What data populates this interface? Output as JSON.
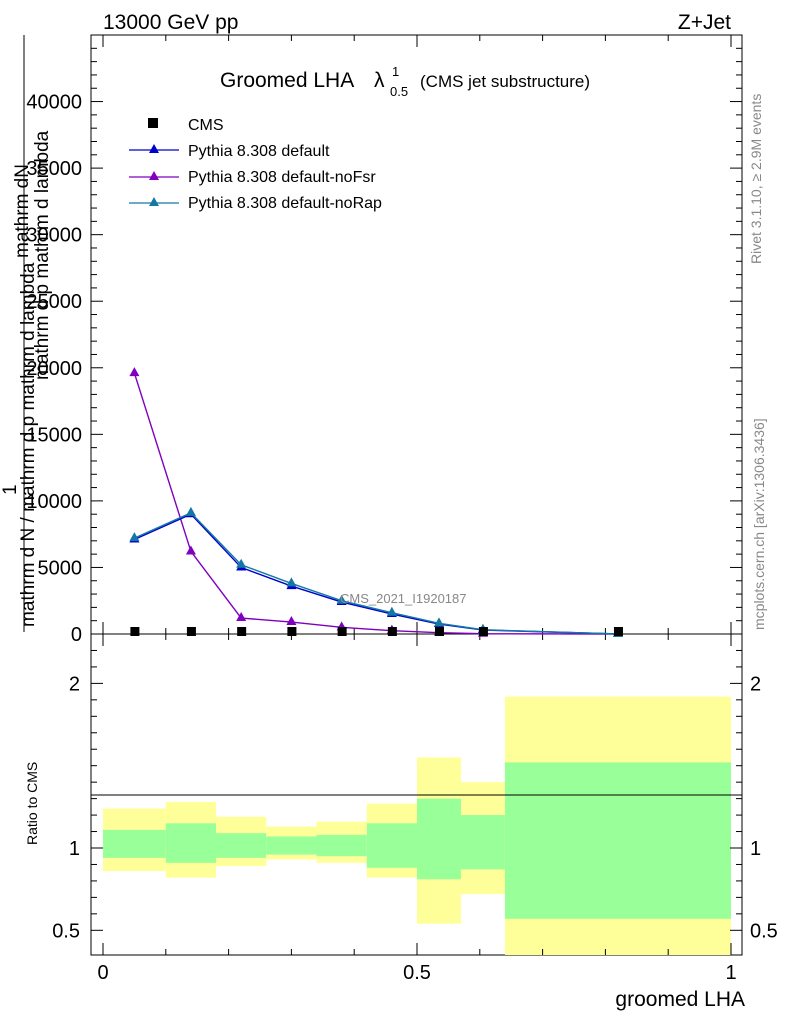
{
  "header": {
    "left": "13000 GeV pp",
    "right": "Z+Jet"
  },
  "title": {
    "prefix": "Groomed LHA",
    "lambda": "λ",
    "superscript": "1",
    "subscript": "0.5",
    "suffix": "(CMS jet substructure)"
  },
  "side_text": {
    "rivet": "Rivet 3.1.10, ≥ 2.9M events",
    "mcplots": "mcplots.cern.ch [arXiv:1306.3436]"
  },
  "watermark": "CMS_2021_I1920187",
  "y_label_lines": [
    "1",
    "mathrm d N",
    "mathrm d N / mathrm d p",
    "mathrm d lambda",
    "mathrm d p",
    "mathrm d mathrm d lambda"
  ],
  "y_label": {
    "numerator": "1",
    "denominator": "mathrm d N",
    "main": "mathrm dN",
    "line2": "mathrm d p mathrm d lambda",
    "line3": "mathrm d N / mathrm d p mathrm d lambda"
  },
  "ratio_ylabel": "Ratio to CMS",
  "xlabel": "groomed LHA",
  "legend": {
    "cms": "CMS",
    "default": "Pythia 8.308 default",
    "nofsr": "Pythia 8.308 default-noFsr",
    "norap": "Pythia 8.308 default-noRap"
  },
  "colors": {
    "cms": "#000000",
    "default": "#0000cc",
    "nofsr": "#7f00bf",
    "norap": "#1478a6",
    "band_outer": "#ffff99",
    "band_inner": "#99ff99"
  },
  "chart_data": {
    "type": "line",
    "x": [
      0.05,
      0.14,
      0.22,
      0.3,
      0.38,
      0.46,
      0.535,
      0.605,
      0.82
    ],
    "xlim": [
      0,
      1
    ],
    "ylim": [
      0,
      45000
    ],
    "yticks": [
      0,
      5000,
      10000,
      15000,
      20000,
      25000,
      30000,
      35000,
      40000
    ],
    "xticks": [
      0,
      0.5,
      1
    ],
    "series": [
      {
        "name": "CMS",
        "values": [
          0,
          0,
          0,
          0,
          0,
          0,
          0,
          0,
          0
        ]
      },
      {
        "name": "Pythia 8.308 default",
        "values": [
          7100,
          9000,
          5000,
          3600,
          2400,
          1500,
          750,
          300,
          0
        ]
      },
      {
        "name": "Pythia 8.308 default-noFsr",
        "values": [
          19600,
          6200,
          1200,
          900,
          500,
          250,
          100,
          20,
          0
        ]
      },
      {
        "name": "Pythia 8.308 default-noRap",
        "values": [
          7200,
          9100,
          5200,
          3800,
          2500,
          1600,
          800,
          320,
          0
        ]
      }
    ],
    "ratio": {
      "ylim": [
        0.35,
        2.3
      ],
      "yticks": [
        0.5,
        1,
        2
      ],
      "bins": [
        {
          "x0": 0.0,
          "x1": 0.1,
          "outer": [
            0.86,
            1.24
          ],
          "inner": [
            0.94,
            1.11
          ]
        },
        {
          "x0": 0.1,
          "x1": 0.18,
          "outer": [
            0.82,
            1.28
          ],
          "inner": [
            0.91,
            1.15
          ]
        },
        {
          "x0": 0.18,
          "x1": 0.26,
          "outer": [
            0.89,
            1.19
          ],
          "inner": [
            0.94,
            1.09
          ]
        },
        {
          "x0": 0.26,
          "x1": 0.34,
          "outer": [
            0.93,
            1.13
          ],
          "inner": [
            0.96,
            1.07
          ]
        },
        {
          "x0": 0.34,
          "x1": 0.42,
          "outer": [
            0.91,
            1.16
          ],
          "inner": [
            0.95,
            1.08
          ]
        },
        {
          "x0": 0.42,
          "x1": 0.5,
          "outer": [
            0.82,
            1.27
          ],
          "inner": [
            0.88,
            1.15
          ]
        },
        {
          "x0": 0.5,
          "x1": 0.57,
          "outer": [
            0.54,
            1.55
          ],
          "inner": [
            0.81,
            1.3
          ]
        },
        {
          "x0": 0.57,
          "x1": 0.64,
          "outer": [
            0.72,
            1.4
          ],
          "inner": [
            0.87,
            1.2
          ]
        },
        {
          "x0": 0.64,
          "x1": 1.0,
          "outer": [
            0.35,
            1.92
          ],
          "inner": [
            0.57,
            1.52
          ]
        }
      ]
    }
  }
}
